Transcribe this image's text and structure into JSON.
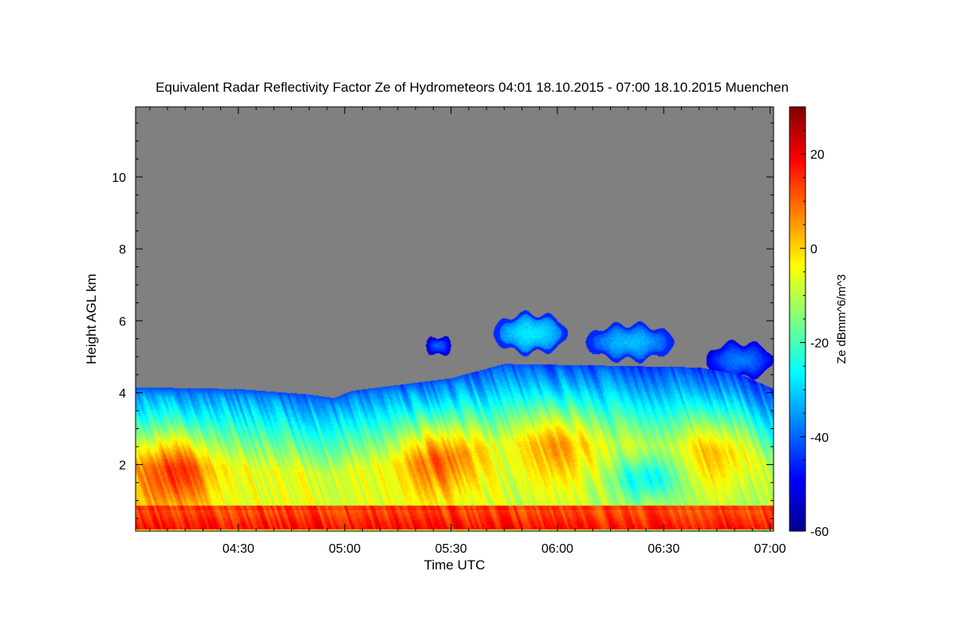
{
  "chart_data": {
    "type": "heatmap",
    "title": "Equivalent Radar Reflectivity Factor Ze of Hydrometeors   04:01 18.10.2015 - 07:00 18.10.2015 Muenchen",
    "xlabel": "Time UTC",
    "ylabel": "Height AGL km",
    "colorbar_label": "Ze dBmm^6/m^3",
    "x_ticks": [
      "04:30",
      "05:00",
      "05:30",
      "06:00",
      "06:30",
      "07:00"
    ],
    "x_tick_minutes": [
      270,
      300,
      330,
      360,
      390,
      420
    ],
    "x_range_minutes": [
      241,
      421
    ],
    "y_ticks": [
      2,
      4,
      6,
      8,
      10
    ],
    "y_range_km": [
      0.15,
      11.95
    ],
    "color_ticks": [
      20,
      0,
      -20,
      -40,
      -60
    ],
    "color_range_dbz": [
      -60,
      30
    ],
    "no_data_color": "#808080",
    "colormap": "jet",
    "cloud_top_km": [
      {
        "t": 241,
        "h": 4.15
      },
      {
        "t": 270,
        "h": 4.1
      },
      {
        "t": 290,
        "h": 3.95
      },
      {
        "t": 297,
        "h": 3.85
      },
      {
        "t": 302,
        "h": 4.05
      },
      {
        "t": 330,
        "h": 4.4
      },
      {
        "t": 345,
        "h": 4.8
      },
      {
        "t": 375,
        "h": 4.75
      },
      {
        "t": 400,
        "h": 4.7
      },
      {
        "t": 412,
        "h": 4.5
      },
      {
        "t": 421,
        "h": 4.1
      }
    ],
    "upper_echoes": [
      {
        "t_start": 342,
        "t_end": 363,
        "h_bottom": 5.1,
        "h_top": 6.2,
        "core_dbz": -28
      },
      {
        "t_start": 368,
        "t_end": 393,
        "h_bottom": 4.9,
        "h_top": 5.9,
        "core_dbz": -32
      },
      {
        "t_start": 402,
        "t_end": 421,
        "h_bottom": 4.4,
        "h_top": 5.4,
        "core_dbz": -38
      },
      {
        "t_start": 323,
        "t_end": 330,
        "h_bottom": 5.0,
        "h_top": 5.6,
        "core_dbz": -40
      }
    ],
    "reflectivity_features": [
      {
        "desc": "surface layer",
        "t_start": 241,
        "t_end": 421,
        "h_bottom": 0.2,
        "h_top": 0.8,
        "dbz": 18
      },
      {
        "desc": "bright band line",
        "t_start": 241,
        "t_end": 421,
        "h": 0.8,
        "dbz": 14
      },
      {
        "desc": "core",
        "t_center": 252,
        "h_center": 1.8,
        "dbz": 12
      },
      {
        "desc": "core",
        "t_center": 327,
        "h_center": 2.2,
        "dbz": 10
      },
      {
        "desc": "core",
        "t_center": 360,
        "h_center": 2.6,
        "dbz": 6
      },
      {
        "desc": "core",
        "t_center": 405,
        "h_center": 2.4,
        "dbz": 4
      },
      {
        "desc": "weak region",
        "t_center": 385,
        "h_center": 1.6,
        "dbz": -20
      }
    ]
  }
}
